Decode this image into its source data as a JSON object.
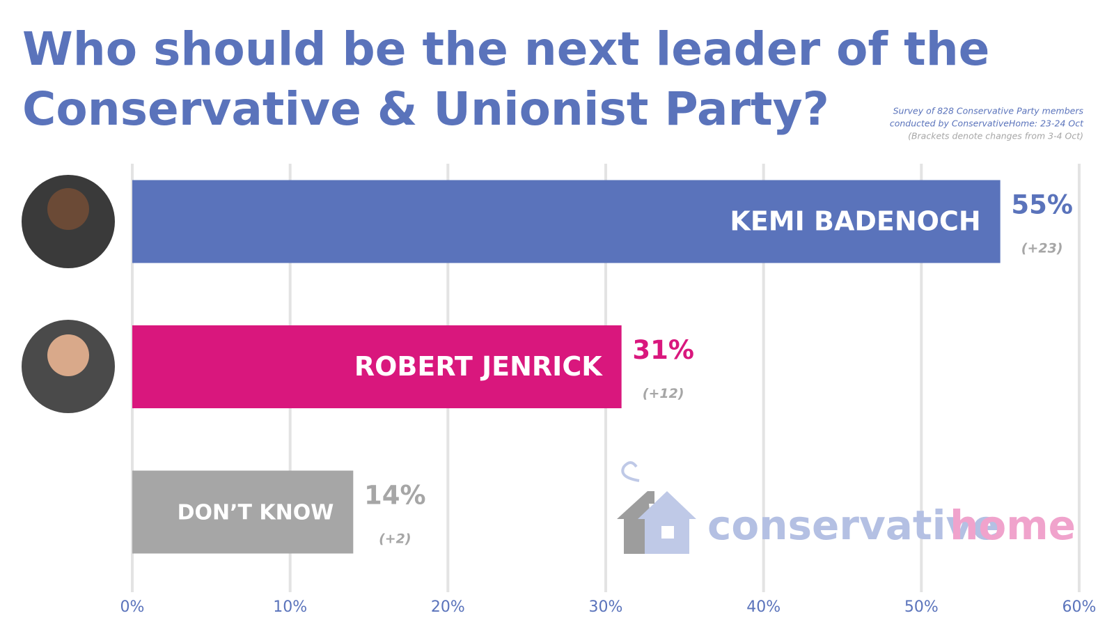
{
  "chart_data": {
    "type": "barh",
    "title_lines": [
      "Who should be the next leader of the",
      "Conservative & Unionist Party?"
    ],
    "notes": [
      "Survey of 828 Conservative Party members",
      "conducted by ConservativeHome: 23-24  Oct",
      "(Brackets denote changes from 3-4 Oct)"
    ],
    "categories": [
      "KEMI BADENOCH",
      "ROBERT JENRICK",
      "DON’T KNOW"
    ],
    "values": [
      55,
      31,
      14
    ],
    "value_labels": [
      "55%",
      "31%",
      "14%"
    ],
    "changes": [
      "(+23)",
      "(+12)",
      "(+2)"
    ],
    "colors": [
      "#5a73bb",
      "#d9177d",
      "#a6a6a6"
    ],
    "label_colors": [
      "#5a73bb",
      "#d9177d",
      "#a6a6a6"
    ],
    "xlim": [
      0,
      60
    ],
    "xticks": [
      {
        "value": 0,
        "label": "0%"
      },
      {
        "value": 10,
        "label": "10%"
      },
      {
        "value": 20,
        "label": "20%"
      },
      {
        "value": 30,
        "label": "30%"
      },
      {
        "value": 40,
        "label": "40%"
      },
      {
        "value": 50,
        "label": "50%"
      },
      {
        "value": 60,
        "label": "60%"
      }
    ],
    "grid": true,
    "logo": [
      "conservative",
      "home"
    ]
  }
}
